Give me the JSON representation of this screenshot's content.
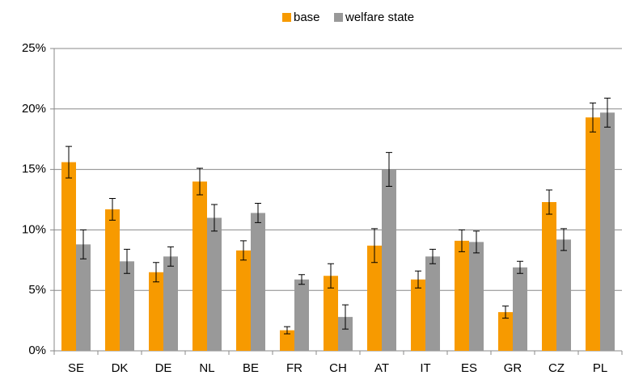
{
  "chart_data": {
    "type": "bar",
    "categories": [
      "SE",
      "DK",
      "DE",
      "NL",
      "BE",
      "FR",
      "CH",
      "AT",
      "IT",
      "ES",
      "GR",
      "CZ",
      "PL"
    ],
    "series": [
      {
        "name": "base",
        "color": "#f79a00",
        "values": [
          15.6,
          11.7,
          6.5,
          14.0,
          8.3,
          1.7,
          6.2,
          8.7,
          5.9,
          9.1,
          3.2,
          12.3,
          19.3
        ],
        "errors": [
          1.3,
          0.9,
          0.8,
          1.1,
          0.8,
          0.3,
          1.0,
          1.4,
          0.7,
          0.9,
          0.5,
          1.0,
          1.2
        ]
      },
      {
        "name": "welfare state",
        "color": "#999999",
        "values": [
          8.8,
          7.4,
          7.8,
          11.0,
          11.4,
          5.9,
          2.8,
          15.0,
          7.8,
          9.0,
          6.9,
          9.2,
          19.7
        ],
        "errors": [
          1.2,
          1.0,
          0.8,
          1.1,
          0.8,
          0.4,
          1.0,
          1.4,
          0.6,
          0.9,
          0.5,
          0.9,
          1.2
        ]
      }
    ],
    "ylim": [
      0,
      25
    ],
    "yticks": [
      {
        "value": 0,
        "label": "0%"
      },
      {
        "value": 5,
        "label": "5%"
      },
      {
        "value": 10,
        "label": "10%"
      },
      {
        "value": 15,
        "label": "15%"
      },
      {
        "value": 20,
        "label": "20%"
      },
      {
        "value": 25,
        "label": "25%"
      }
    ],
    "grid": true,
    "legend": "top"
  }
}
